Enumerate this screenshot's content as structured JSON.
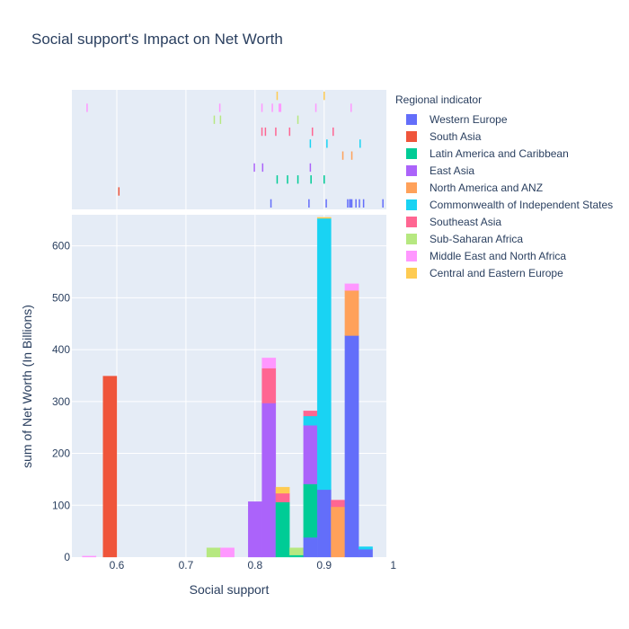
{
  "chart_data": {
    "type": "bar",
    "title": "Social support's Impact on Net Worth",
    "xlabel": "Social support",
    "ylabel": "sum of Net Worth (In Billions)",
    "legend_title": "Regional indicator",
    "xlim": [
      0.535,
      0.99
    ],
    "ylim": [
      0,
      660
    ],
    "x_ticks": [
      0.6,
      0.7,
      0.8,
      0.9,
      1.0
    ],
    "x_tick_labels": [
      "0.6",
      "0.7",
      "0.8",
      "0.9",
      "1"
    ],
    "y_ticks": [
      0,
      100,
      200,
      300,
      400,
      500,
      600
    ],
    "y_tick_labels": [
      "0",
      "100",
      "200",
      "300",
      "400",
      "500",
      "600"
    ],
    "grid": true,
    "barmode": "stack",
    "bin_starts": [
      0.55,
      0.58,
      0.73,
      0.75,
      0.79,
      0.81,
      0.83,
      0.85,
      0.87,
      0.89,
      0.91,
      0.93,
      0.95
    ],
    "bin_width": 0.02,
    "series": [
      {
        "name": "Western Europe",
        "color": "#636efa",
        "values": [
          0,
          0,
          0,
          0,
          0,
          0,
          0,
          0,
          38,
          130,
          0,
          427,
          15
        ],
        "rug": [
          0.823,
          0.878,
          0.903,
          0.934,
          0.937,
          0.938,
          0.94,
          0.946,
          0.951,
          0.957,
          0.985
        ]
      },
      {
        "name": "South Asia",
        "color": "#ef553b",
        "values": [
          0,
          349,
          0,
          0,
          0,
          0,
          0,
          0,
          0,
          0,
          0,
          0,
          0
        ],
        "rug": [
          0.603
        ]
      },
      {
        "name": "Latin America and Caribbean",
        "color": "#00cc96",
        "values": [
          0,
          0,
          0,
          0,
          0,
          0,
          106,
          4,
          103,
          0,
          0,
          0,
          0
        ],
        "rug": [
          0.832,
          0.847,
          0.862,
          0.881,
          0.9
        ]
      },
      {
        "name": "East Asia",
        "color": "#ab63fa",
        "values": [
          0,
          0,
          0,
          0,
          107,
          297,
          0,
          0,
          113,
          0,
          0,
          0,
          0
        ],
        "rug": [
          0.799,
          0.811,
          0.88
        ]
      },
      {
        "name": "North America and ANZ",
        "color": "#ffa15a",
        "values": [
          0,
          0,
          0,
          0,
          0,
          0,
          0,
          0,
          0,
          0,
          97,
          87,
          0
        ],
        "rug": [
          0.927,
          0.94
        ]
      },
      {
        "name": "Commonwealth of Independent States",
        "color": "#19d3f3",
        "values": [
          0,
          0,
          0,
          0,
          0,
          0,
          0,
          0,
          18,
          523,
          0,
          0,
          5
        ],
        "rug": [
          0.88,
          0.904,
          0.952
        ]
      },
      {
        "name": "Southeast Asia",
        "color": "#ff6692",
        "values": [
          0,
          0,
          0,
          0,
          0,
          67,
          17,
          0,
          10,
          0,
          13,
          0,
          0
        ],
        "rug": [
          0.81,
          0.815,
          0.83,
          0.85,
          0.883,
          0.913
        ]
      },
      {
        "name": "Sub-Saharan Africa",
        "color": "#b6e880",
        "values": [
          0,
          0,
          18,
          0,
          0,
          0,
          0,
          14,
          0,
          0,
          0,
          0,
          0
        ],
        "rug": [
          0.741,
          0.75,
          0.862
        ]
      },
      {
        "name": "Middle East and North Africa",
        "color": "#ff97ff",
        "values": [
          2,
          0,
          0,
          18,
          0,
          20,
          0,
          0,
          0,
          0,
          0,
          13,
          0
        ],
        "rug": [
          0.557,
          0.749,
          0.81,
          0.825,
          0.835,
          0.837,
          0.888,
          0.939
        ]
      },
      {
        "name": "Central and Eastern Europe",
        "color": "#fecb52",
        "values": [
          0,
          0,
          0,
          0,
          0,
          0,
          12,
          0,
          0,
          2,
          0,
          0,
          0
        ],
        "rug": [
          0.832,
          0.9
        ]
      }
    ]
  }
}
